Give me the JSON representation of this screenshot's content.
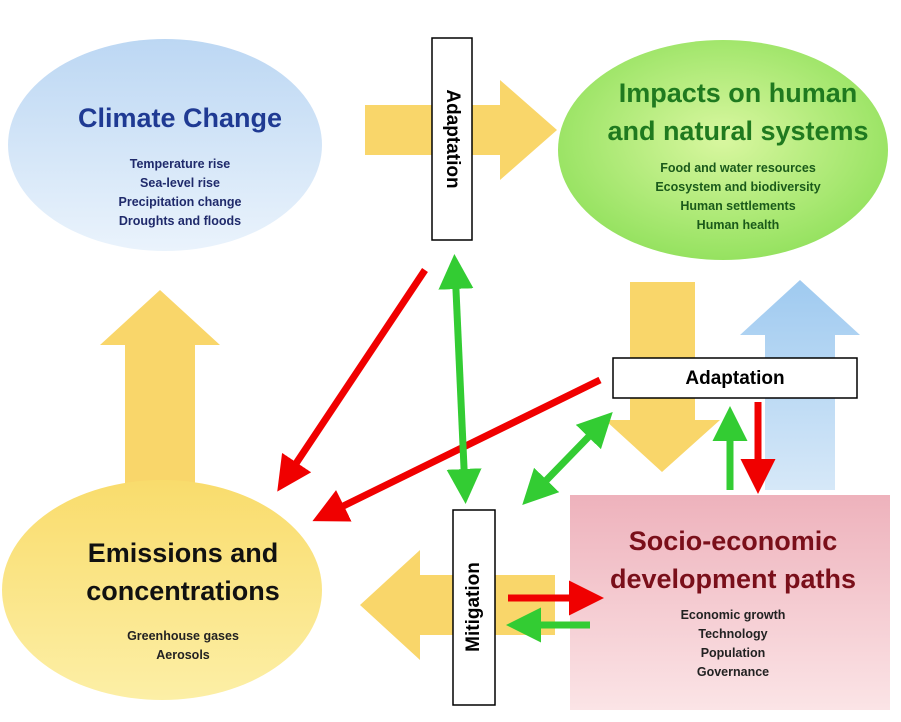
{
  "nodes": [
    {
      "title": [
        "Climate Change"
      ],
      "items": [
        "Temperature rise",
        "Sea-level rise",
        "Precipitation change",
        "Droughts and floods"
      ]
    },
    {
      "title": [
        "Impacts on human",
        "and natural systems"
      ],
      "items": [
        "Food and water resources",
        "Ecosystem and biodiversity",
        "Human settlements",
        "Human health"
      ]
    },
    {
      "title": [
        "Emissions and",
        "concentrations"
      ],
      "items": [
        "Greenhouse gases",
        "Aerosols"
      ]
    },
    {
      "title": [
        "Socio-economic",
        "development paths"
      ],
      "items": [
        "Economic growth",
        "Technology",
        "Population",
        "Governance"
      ]
    }
  ],
  "labels": [
    "Adaptation",
    "Adaptation",
    "Mitigation"
  ]
}
